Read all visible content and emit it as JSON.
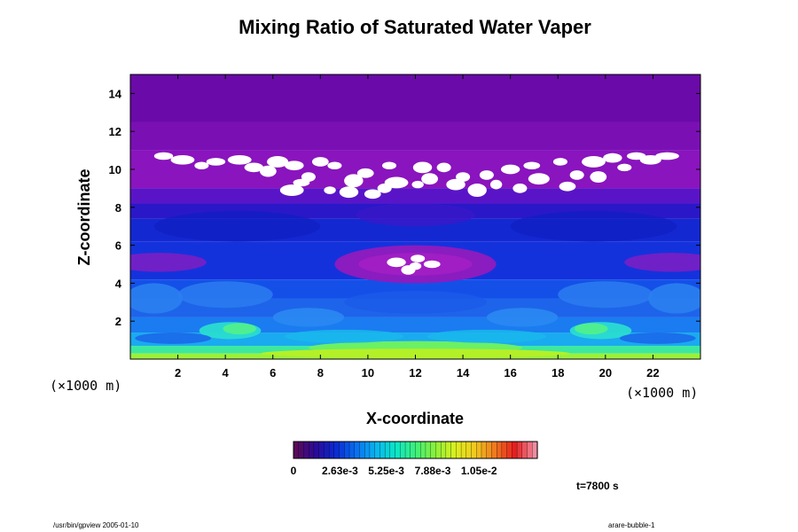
{
  "chart_data": {
    "type": "heatmap",
    "title": "Mixing Ratio of Saturated Water Vaper",
    "xlabel": "X-coordinate",
    "ylabel": "Z-coordinate",
    "x_unit": "(×1000 m)",
    "y_unit": "(×1000 m)",
    "xlim": [
      0,
      24
    ],
    "ylim": [
      0,
      15
    ],
    "x_ticks": [
      2,
      4,
      6,
      8,
      10,
      12,
      14,
      16,
      18,
      20,
      22
    ],
    "y_ticks": [
      2,
      4,
      6,
      8,
      10,
      12,
      14
    ],
    "colorbar": {
      "min": 0,
      "max": 0.0138,
      "tick_labels": [
        "0",
        "2.63e-3",
        "5.25e-3",
        "7.88e-3",
        "1.05e-2"
      ],
      "tick_values": [
        0,
        0.00263,
        0.00525,
        0.00788,
        0.0105
      ],
      "colors": [
        "#5a0a5a",
        "#2a0a9a",
        "#0a2ad2",
        "#0a6ef0",
        "#0ab4f0",
        "#0ae6c8",
        "#3cf07a",
        "#8cf03a",
        "#dcf01e",
        "#f0c81e",
        "#f0781e",
        "#e61e1e",
        "#f08ca0"
      ]
    },
    "grid": false,
    "legend": "colorbar-bottom",
    "time_label": "t=7800 s",
    "footer_left": "/usr/bin/gpview 2005-01-10",
    "footer_right": "arare-bubble-1"
  }
}
